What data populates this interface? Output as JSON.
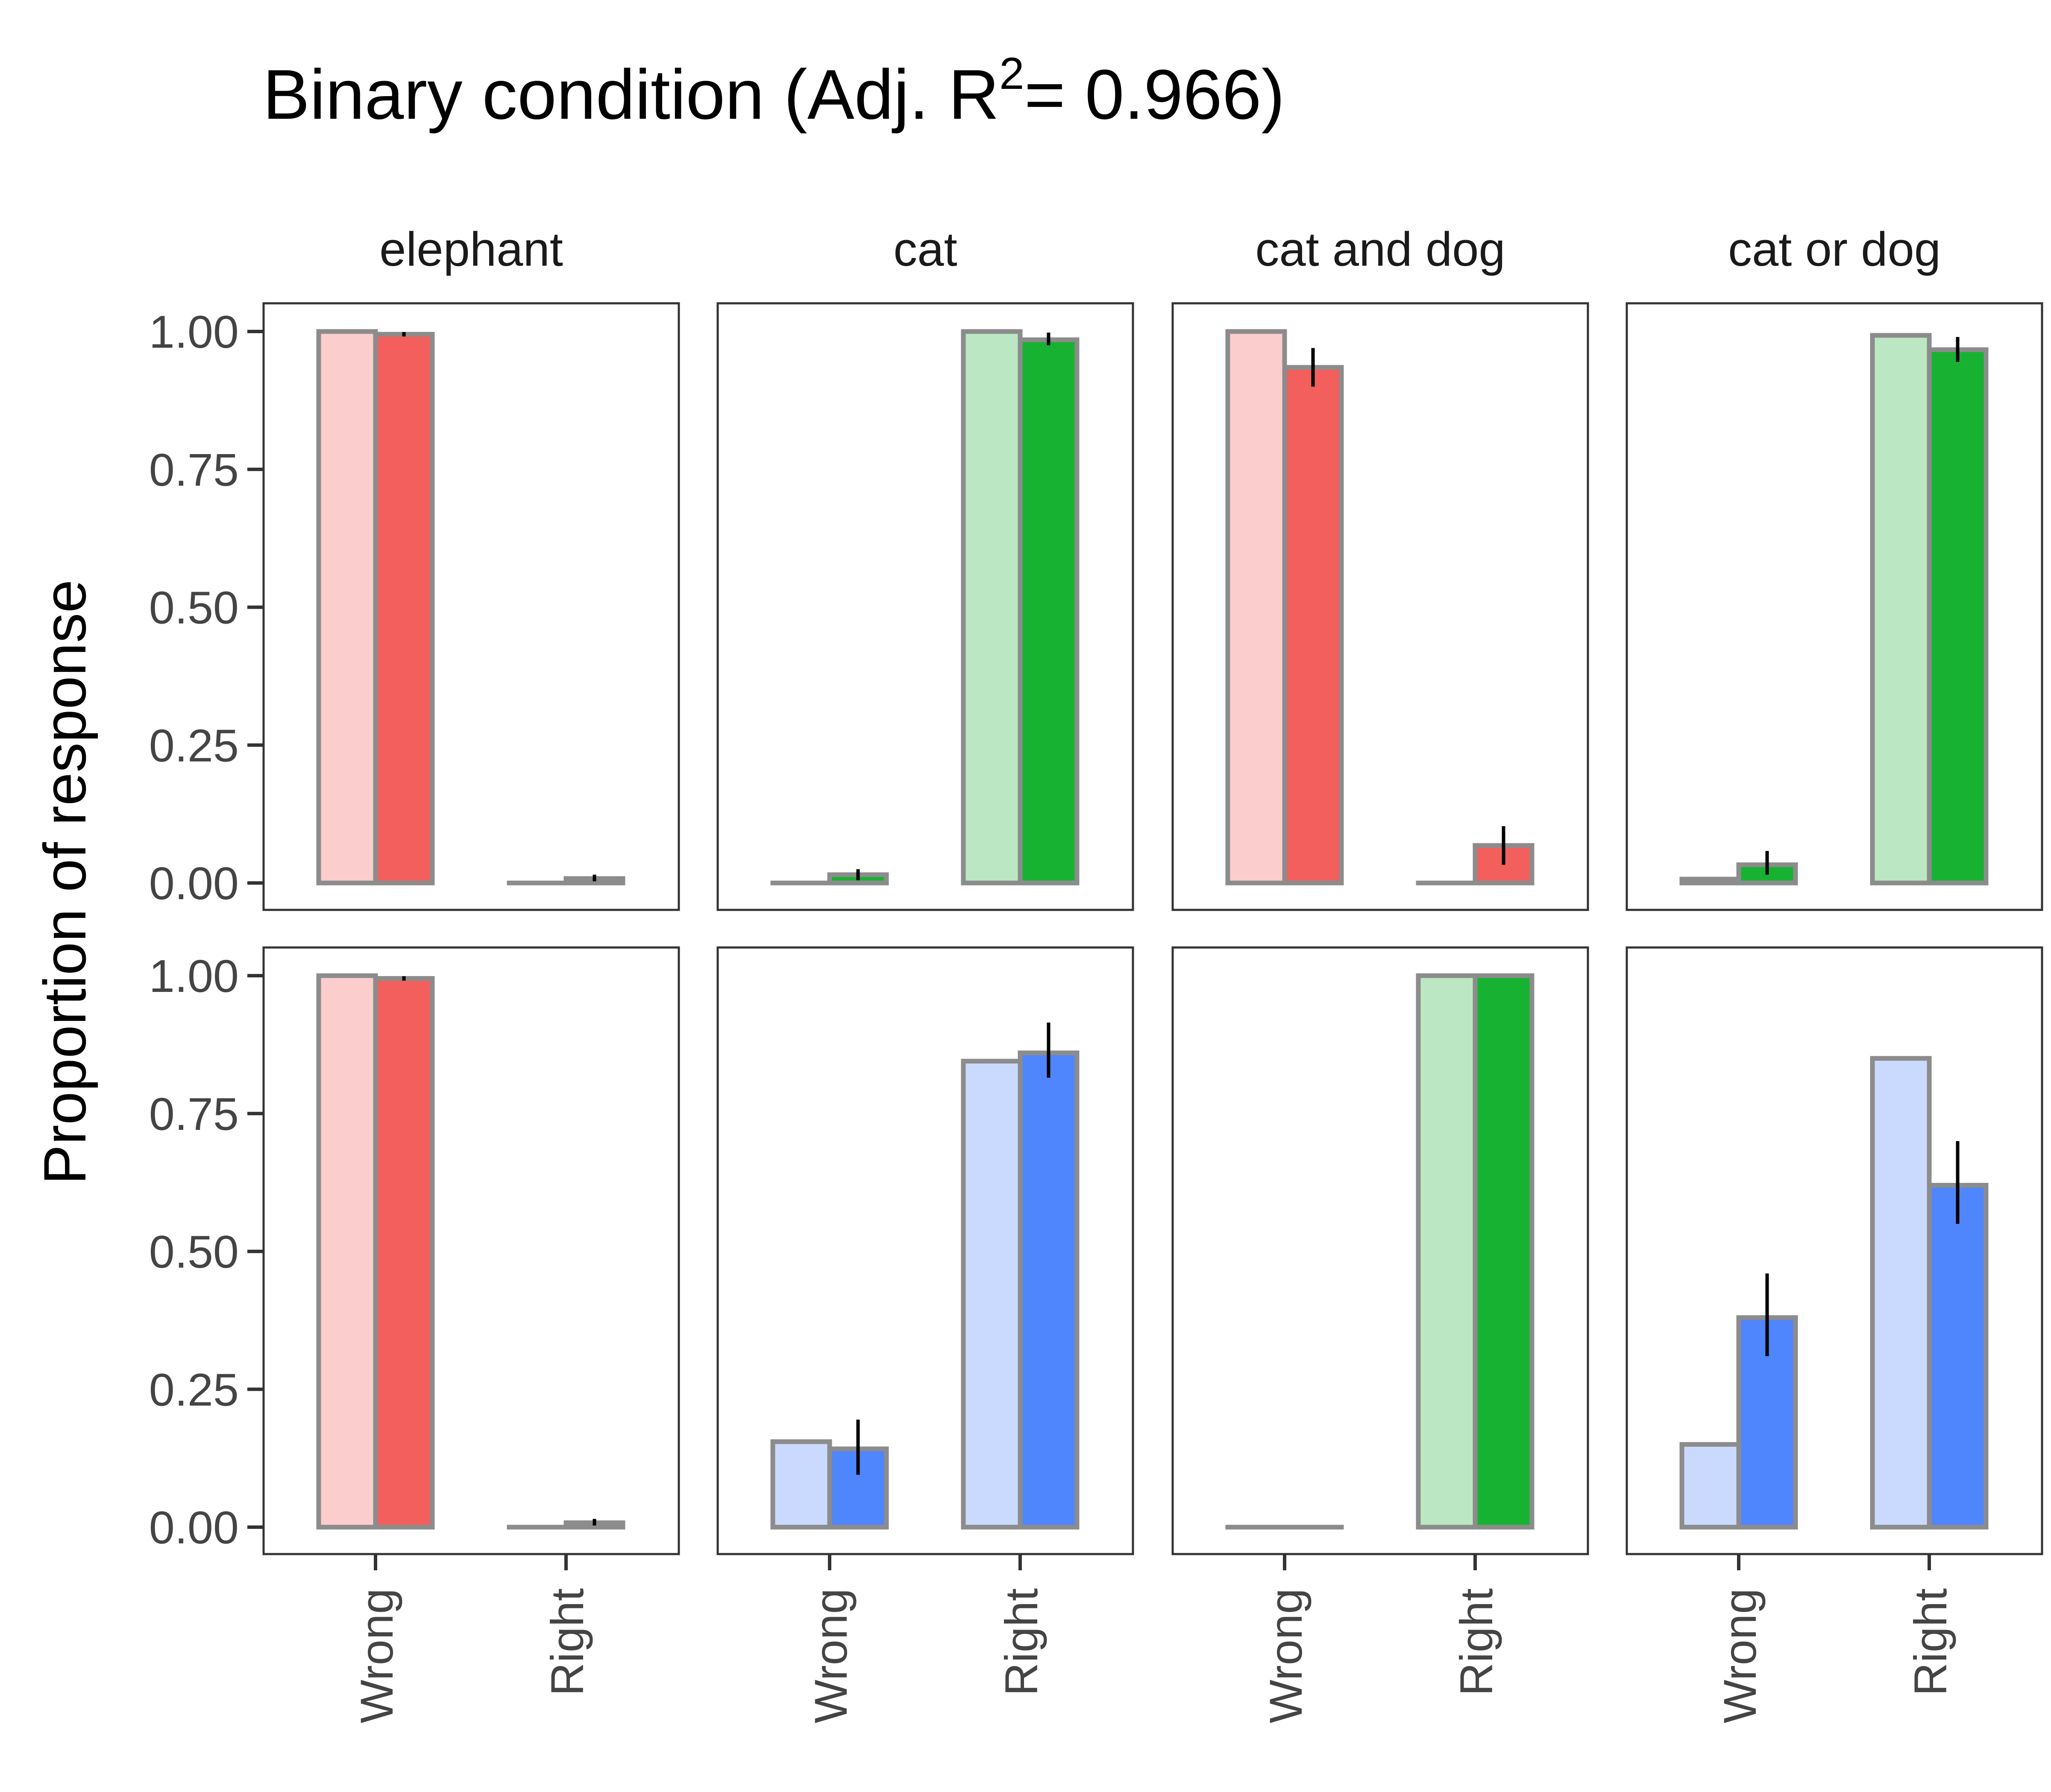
{
  "title": "Binary condition (Adj. R",
  "title_sup": "2",
  "title_tail": "= 0.966)",
  "ylabel": "Proportion of response",
  "y_ticks": [
    "0.00",
    "0.25",
    "0.50",
    "0.75",
    "1.00"
  ],
  "colors": {
    "red_light": "#FCCDCD",
    "red_dark": "#F25F5C",
    "green_light": "#BBE8C2",
    "green_dark": "#18B233",
    "blue_light": "#CADAFE",
    "blue_dark": "#4F86FD",
    "bar_outline": "#8C8C8C",
    "panel_border": "#333333"
  },
  "chart_data": {
    "type": "bar",
    "title": "Binary condition (Adj. R^2= 0.966)",
    "ylabel": "Proportion of response",
    "ylim": [
      0,
      1
    ],
    "columns": [
      "elephant",
      "cat",
      "cat and dog",
      "cat or dog"
    ],
    "categories": [
      "Wrong",
      "Right"
    ],
    "grid": false,
    "panels": [
      {
        "row": 0,
        "col": 0,
        "light": "red",
        "dark": "red",
        "bars": [
          {
            "category": "Wrong",
            "light": 1.0,
            "dark": 0.995,
            "err": [
              0.991,
              0.999
            ]
          },
          {
            "category": "Right",
            "light": 0.0,
            "dark": 0.008,
            "err": [
              0.003,
              0.015
            ]
          }
        ]
      },
      {
        "row": 0,
        "col": 1,
        "light": "green",
        "dark": "green",
        "bars": [
          {
            "category": "Wrong",
            "light": 0.0,
            "dark": 0.015,
            "err": [
              0.005,
              0.025
            ]
          },
          {
            "category": "Right",
            "light": 1.0,
            "dark": 0.985,
            "err": [
              0.975,
              0.998
            ]
          }
        ]
      },
      {
        "row": 0,
        "col": 2,
        "light": "red",
        "dark": "red",
        "bars": [
          {
            "category": "Wrong",
            "light": 1.0,
            "dark": 0.935,
            "err": [
              0.9,
              0.97
            ]
          },
          {
            "category": "Right",
            "light": 0.0,
            "dark": 0.068,
            "err": [
              0.033,
              0.103
            ]
          }
        ]
      },
      {
        "row": 0,
        "col": 3,
        "light": "green",
        "dark": "green",
        "bars": [
          {
            "category": "Wrong",
            "light": 0.007,
            "dark": 0.033,
            "err": [
              0.015,
              0.058
            ]
          },
          {
            "category": "Right",
            "light": 0.993,
            "dark": 0.967,
            "err": [
              0.945,
              0.99
            ]
          }
        ]
      },
      {
        "row": 1,
        "col": 0,
        "light": "red",
        "dark": "red",
        "bars": [
          {
            "category": "Wrong",
            "light": 1.0,
            "dark": 0.995,
            "err": [
              0.991,
              0.999
            ]
          },
          {
            "category": "Right",
            "light": 0.0,
            "dark": 0.008,
            "err": [
              0.003,
              0.015
            ]
          }
        ]
      },
      {
        "row": 1,
        "col": 1,
        "light": "blue",
        "dark": "blue",
        "bars": [
          {
            "category": "Wrong",
            "light": 0.155,
            "dark": 0.142,
            "err": [
              0.095,
              0.195
            ]
          },
          {
            "category": "Right",
            "light": 0.845,
            "dark": 0.86,
            "err": [
              0.815,
              0.915
            ]
          }
        ]
      },
      {
        "row": 1,
        "col": 2,
        "light": "green",
        "dark": "green",
        "bars": [
          {
            "category": "Wrong",
            "light": 0.0,
            "dark": 0.0,
            "err": null
          },
          {
            "category": "Right",
            "light": 1.0,
            "dark": 1.0,
            "err": null
          }
        ]
      },
      {
        "row": 1,
        "col": 3,
        "light": "blue",
        "dark": "blue",
        "bars": [
          {
            "category": "Wrong",
            "light": 0.15,
            "dark": 0.38,
            "err": [
              0.31,
              0.46
            ]
          },
          {
            "category": "Right",
            "light": 0.85,
            "dark": 0.62,
            "err": [
              0.55,
              0.7
            ]
          }
        ]
      }
    ]
  }
}
